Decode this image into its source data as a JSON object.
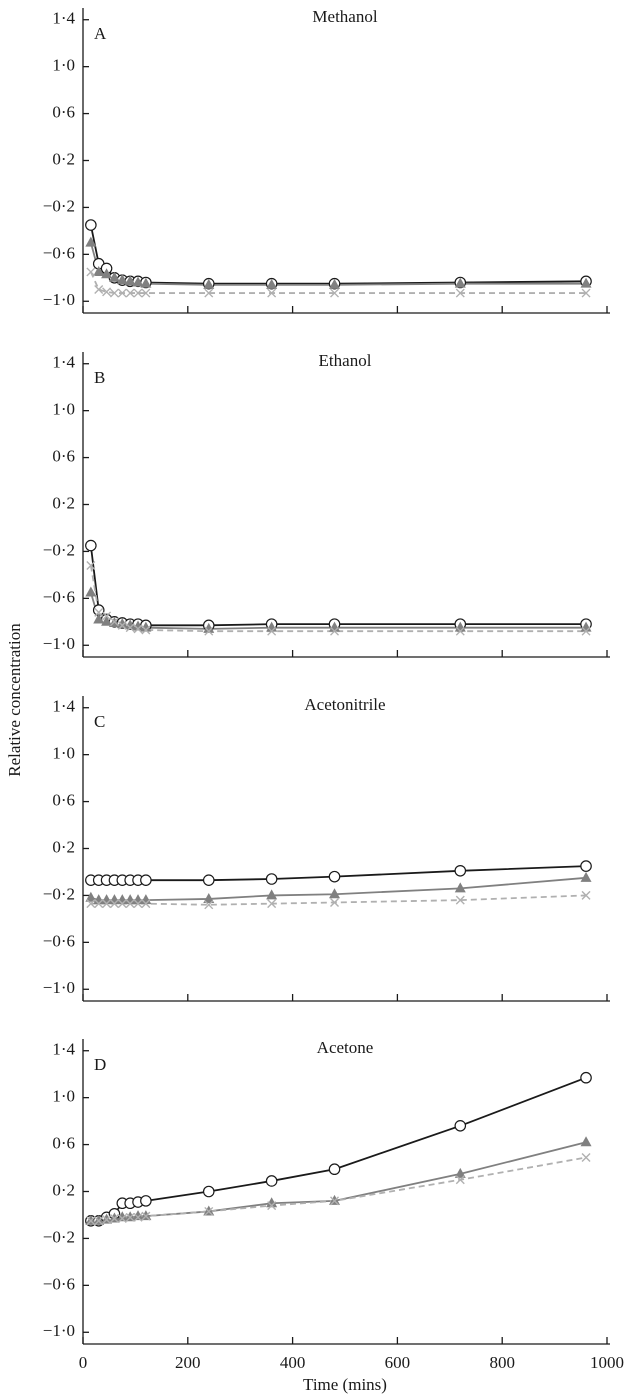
{
  "xlabel": "Time (mins)",
  "ylabel": "Relative concentration",
  "chart_data": [
    {
      "type": "line",
      "title": "Methanol",
      "label": "A",
      "x": [
        15,
        30,
        45,
        60,
        75,
        90,
        105,
        120,
        240,
        360,
        480,
        720,
        960
      ],
      "xlim": [
        0,
        1000
      ],
      "ylim": [
        -1.1,
        1.5
      ],
      "yticks": [
        {
          "value": 1.4,
          "label": "1·4"
        },
        {
          "value": 1.0,
          "label": "1·0"
        },
        {
          "value": 0.6,
          "label": "0·6"
        },
        {
          "value": 0.2,
          "label": "0·2"
        },
        {
          "value": -0.2,
          "label": "−0·2"
        },
        {
          "value": -0.6,
          "label": "−0·6"
        },
        {
          "value": -1.0,
          "label": "−1·0"
        }
      ],
      "series": [
        {
          "color": "#1a1a1a",
          "marker": "circle",
          "dash": false,
          "values": [
            -0.35,
            -0.68,
            -0.72,
            -0.8,
            -0.82,
            -0.83,
            -0.83,
            -0.84,
            -0.85,
            -0.85,
            -0.85,
            -0.84,
            -0.83
          ]
        },
        {
          "color": "#808080",
          "marker": "triangle",
          "dash": false,
          "values": [
            -0.5,
            -0.75,
            -0.77,
            -0.8,
            -0.82,
            -0.83,
            -0.84,
            -0.85,
            -0.86,
            -0.86,
            -0.86,
            -0.85,
            -0.85
          ]
        },
        {
          "color": "#b0b0b0",
          "marker": "cross",
          "dash": true,
          "values": [
            -0.75,
            -0.9,
            -0.92,
            -0.93,
            -0.93,
            -0.93,
            -0.93,
            -0.93,
            -0.93,
            -0.93,
            -0.93,
            -0.93,
            -0.93
          ]
        }
      ]
    },
    {
      "type": "line",
      "title": "Ethanol",
      "label": "B",
      "x": [
        15,
        30,
        45,
        60,
        75,
        90,
        105,
        120,
        240,
        360,
        480,
        720,
        960
      ],
      "xlim": [
        0,
        1000
      ],
      "ylim": [
        -1.1,
        1.5
      ],
      "yticks": [
        {
          "value": 1.4,
          "label": "1·4"
        },
        {
          "value": 1.0,
          "label": "1·0"
        },
        {
          "value": 0.6,
          "label": "0·6"
        },
        {
          "value": 0.2,
          "label": "0·2"
        },
        {
          "value": -0.2,
          "label": "−0·2"
        },
        {
          "value": -0.6,
          "label": "−0·6"
        },
        {
          "value": -1.0,
          "label": "−1·0"
        }
      ],
      "series": [
        {
          "color": "#1a1a1a",
          "marker": "circle",
          "dash": false,
          "values": [
            -0.15,
            -0.7,
            -0.78,
            -0.8,
            -0.81,
            -0.82,
            -0.82,
            -0.83,
            -0.83,
            -0.82,
            -0.82,
            -0.82,
            -0.82
          ]
        },
        {
          "color": "#808080",
          "marker": "triangle",
          "dash": false,
          "values": [
            -0.55,
            -0.78,
            -0.8,
            -0.81,
            -0.82,
            -0.83,
            -0.84,
            -0.85,
            -0.86,
            -0.85,
            -0.85,
            -0.85,
            -0.85
          ]
        },
        {
          "color": "#b0b0b0",
          "marker": "cross",
          "dash": true,
          "values": [
            -0.32,
            -0.72,
            -0.75,
            -0.8,
            -0.83,
            -0.85,
            -0.86,
            -0.87,
            -0.88,
            -0.88,
            -0.88,
            -0.88,
            -0.88
          ]
        }
      ]
    },
    {
      "type": "line",
      "title": "Acetonitrile",
      "label": "C",
      "x": [
        15,
        30,
        45,
        60,
        75,
        90,
        105,
        120,
        240,
        360,
        480,
        720,
        960
      ],
      "xlim": [
        0,
        1000
      ],
      "ylim": [
        -1.1,
        1.5
      ],
      "yticks": [
        {
          "value": 1.4,
          "label": "1·4"
        },
        {
          "value": 1.0,
          "label": "1·0"
        },
        {
          "value": 0.6,
          "label": "0·6"
        },
        {
          "value": 0.2,
          "label": "0·2"
        },
        {
          "value": -0.2,
          "label": "−0·2"
        },
        {
          "value": -0.6,
          "label": "−0·6"
        },
        {
          "value": -1.0,
          "label": "−1·0"
        }
      ],
      "series": [
        {
          "color": "#1a1a1a",
          "marker": "circle",
          "dash": false,
          "values": [
            -0.07,
            -0.07,
            -0.07,
            -0.07,
            -0.07,
            -0.07,
            -0.07,
            -0.07,
            -0.07,
            -0.06,
            -0.04,
            0.01,
            0.05
          ]
        },
        {
          "color": "#808080",
          "marker": "triangle",
          "dash": false,
          "values": [
            -0.22,
            -0.24,
            -0.24,
            -0.24,
            -0.24,
            -0.24,
            -0.24,
            -0.24,
            -0.23,
            -0.2,
            -0.19,
            -0.14,
            -0.05
          ]
        },
        {
          "color": "#b0b0b0",
          "marker": "cross",
          "dash": true,
          "values": [
            -0.27,
            -0.27,
            -0.27,
            -0.27,
            -0.27,
            -0.27,
            -0.27,
            -0.27,
            -0.28,
            -0.27,
            -0.26,
            -0.24,
            -0.2
          ]
        }
      ]
    },
    {
      "type": "line",
      "title": "Acetone",
      "label": "D",
      "x": [
        15,
        30,
        45,
        60,
        75,
        90,
        105,
        120,
        240,
        360,
        480,
        720,
        960
      ],
      "xlim": [
        0,
        1000
      ],
      "xticks": [
        0,
        200,
        400,
        600,
        800,
        1000
      ],
      "ylim": [
        -1.1,
        1.5
      ],
      "yticks": [
        {
          "value": 1.4,
          "label": "1·4"
        },
        {
          "value": 1.0,
          "label": "1·0"
        },
        {
          "value": 0.6,
          "label": "0·6"
        },
        {
          "value": 0.2,
          "label": "0·2"
        },
        {
          "value": -0.2,
          "label": "−0·2"
        },
        {
          "value": -0.6,
          "label": "−0·6"
        },
        {
          "value": -1.0,
          "label": "−1·0"
        }
      ],
      "series": [
        {
          "color": "#1a1a1a",
          "marker": "circle",
          "dash": false,
          "values": [
            -0.05,
            -0.05,
            -0.02,
            0.01,
            0.1,
            0.1,
            0.11,
            0.12,
            0.2,
            0.29,
            0.39,
            0.76,
            1.17
          ]
        },
        {
          "color": "#808080",
          "marker": "triangle",
          "dash": false,
          "values": [
            -0.05,
            -0.05,
            -0.04,
            -0.03,
            -0.02,
            -0.02,
            -0.01,
            -0.01,
            0.03,
            0.1,
            0.12,
            0.35,
            0.62
          ]
        },
        {
          "color": "#b0b0b0",
          "marker": "cross",
          "dash": true,
          "values": [
            -0.05,
            -0.05,
            -0.04,
            -0.03,
            -0.03,
            -0.02,
            -0.02,
            -0.01,
            0.03,
            0.08,
            0.12,
            0.3,
            0.49
          ]
        }
      ]
    }
  ]
}
